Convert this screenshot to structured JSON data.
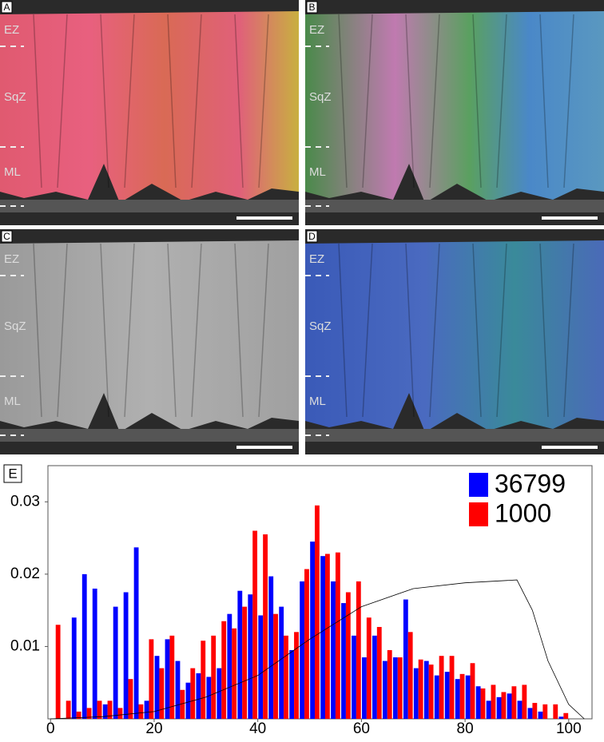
{
  "panels": [
    {
      "label": "A",
      "zones": [
        "EZ",
        "SqZ",
        "ML"
      ]
    },
    {
      "label": "B",
      "zones": [
        "EZ",
        "SqZ",
        "ML"
      ]
    },
    {
      "label": "C",
      "zones": [
        "EZ",
        "SqZ",
        "ML"
      ]
    },
    {
      "label": "D",
      "zones": [
        "EZ",
        "SqZ",
        "ML"
      ]
    }
  ],
  "chart_data": {
    "type": "bar",
    "panel_label": "E",
    "x": [
      1,
      3,
      5,
      7,
      9,
      11,
      13,
      15,
      17,
      19,
      21,
      23,
      25,
      27,
      29,
      31,
      33,
      35,
      37,
      39,
      41,
      43,
      45,
      47,
      49,
      51,
      53,
      55,
      57,
      59,
      61,
      63,
      65,
      67,
      69,
      71,
      73,
      75,
      77,
      79,
      81,
      83,
      85,
      87,
      89,
      91,
      93,
      95,
      97,
      99
    ],
    "series": [
      {
        "name": "36799",
        "color": "#0000ff",
        "values": [
          0,
          0,
          0.014,
          0.02,
          0.018,
          0.002,
          0.0155,
          0.0175,
          0.0237,
          0.0025,
          0.0087,
          0.011,
          0.008,
          0.005,
          0.0063,
          0.0058,
          0.007,
          0.0145,
          0.0177,
          0.0172,
          0.0143,
          0.0197,
          0.0155,
          0.0095,
          0.019,
          0.0245,
          0.0225,
          0.019,
          0.016,
          0.0115,
          0.0085,
          0.0115,
          0.008,
          0.0085,
          0.0165,
          0.007,
          0.008,
          0.006,
          0.0065,
          0.0055,
          0.006,
          0.0045,
          0.0025,
          0.003,
          0.0035,
          0.0025,
          0.0015,
          0.001,
          0,
          0.0003
        ]
      },
      {
        "name": "1000",
        "color": "#ff0000",
        "values": [
          0.013,
          0.0025,
          0.001,
          0.0015,
          0.0025,
          0.0025,
          0.0015,
          0.0055,
          0.002,
          0.011,
          0.007,
          0.0115,
          0.004,
          0.007,
          0.0108,
          0.0115,
          0.0135,
          0.0125,
          0.0155,
          0.026,
          0.0255,
          0.0145,
          0.0115,
          0.012,
          0.0207,
          0.0295,
          0.0228,
          0.023,
          0.0175,
          0.019,
          0.014,
          0.0127,
          0.0095,
          0.0085,
          0.012,
          0.0082,
          0.0075,
          0.0087,
          0.0087,
          0.0062,
          0.0077,
          0.0042,
          0.0047,
          0.0037,
          0.0045,
          0.0047,
          0.0022,
          0.002,
          0.002,
          0.0008
        ]
      }
    ],
    "curve": {
      "color": "#000000",
      "x": [
        0,
        10,
        20,
        30,
        40,
        50,
        60,
        70,
        80,
        90,
        93,
        96,
        100,
        103
      ],
      "values": [
        0,
        0.0003,
        0.001,
        0.003,
        0.006,
        0.011,
        0.0155,
        0.018,
        0.0188,
        0.0192,
        0.015,
        0.008,
        0.002,
        0
      ]
    },
    "xlim": [
      -0.5,
      104.5
    ],
    "xticks": [
      0,
      20,
      40,
      60,
      80,
      100
    ],
    "ylim": [
      0,
      0.035
    ],
    "yticks": [
      0.01,
      0.02,
      0.03
    ],
    "legend": "upper right"
  }
}
